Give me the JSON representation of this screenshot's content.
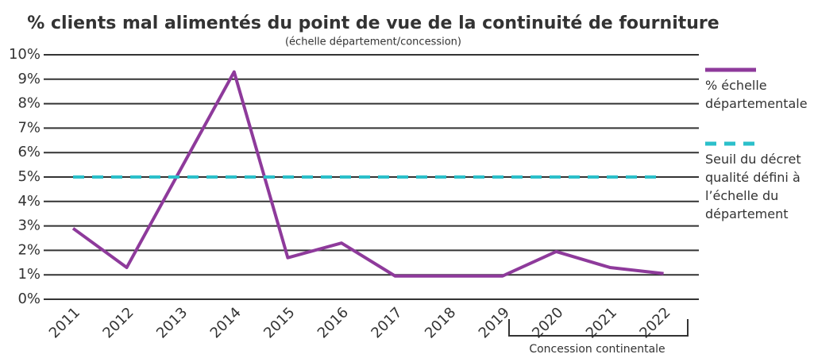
{
  "chart_data": {
    "type": "line",
    "title": "% clients mal alimentés du point de vue de la continuité de fourniture",
    "subtitle": "(échelle département/concession)",
    "categories": [
      "2011",
      "2012",
      "2013",
      "2014",
      "2015",
      "2016",
      "2017",
      "2018",
      "2019",
      "2020",
      "2021",
      "2022"
    ],
    "series": [
      {
        "name": "% échelle départementale",
        "color": "#8e3a9b",
        "dashed": false,
        "values": [
          2.9,
          1.3,
          5.3,
          9.3,
          1.7,
          2.3,
          0.95,
          0.95,
          0.95,
          1.95,
          1.3,
          1.05
        ]
      },
      {
        "name": "Seuil du décret qualité défini à l’échelle du département",
        "color": "#2bbfca",
        "dashed": true,
        "values": [
          5,
          5,
          5,
          5,
          5,
          5,
          5,
          5,
          5,
          5,
          5,
          5
        ]
      }
    ],
    "ylim": [
      0,
      10
    ],
    "yticks": [
      {
        "value": 0,
        "label": "0%"
      },
      {
        "value": 1,
        "label": "1%"
      },
      {
        "value": 2,
        "label": "2%"
      },
      {
        "value": 3,
        "label": "3%"
      },
      {
        "value": 4,
        "label": "4%"
      },
      {
        "value": 5,
        "label": "5%"
      },
      {
        "value": 6,
        "label": "6%"
      },
      {
        "value": 7,
        "label": "7%"
      },
      {
        "value": 8,
        "label": "8%"
      },
      {
        "value": 9,
        "label": "9%"
      },
      {
        "value": 10,
        "label": "10%"
      }
    ],
    "grid": true,
    "legend": "right",
    "annotations": [
      "Concession continentale"
    ]
  }
}
